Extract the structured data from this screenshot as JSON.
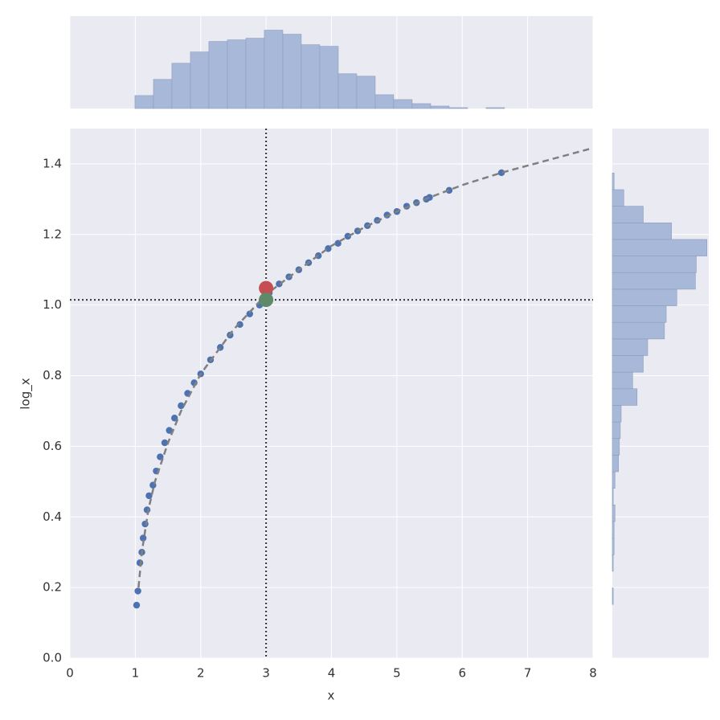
{
  "chart_data": {
    "type": "joint",
    "xlabel": "x",
    "ylabel": "log_x",
    "xlim": [
      0,
      8
    ],
    "ylim": [
      0,
      1.5
    ],
    "xticks": [
      0,
      1,
      2,
      3,
      4,
      5,
      6,
      7,
      8
    ],
    "yticks": [
      {
        "value": 0,
        "label": "0.0"
      },
      0.2,
      0.4,
      0.6,
      0.8,
      {
        "value": 1,
        "label": "1.0"
      },
      1.2,
      1.4
    ],
    "grid": true,
    "points": {
      "color": "#4c72b0",
      "x": [
        1.02,
        1.04,
        1.07,
        1.1,
        1.12,
        1.15,
        1.18,
        1.21,
        1.27,
        1.32,
        1.38,
        1.45,
        1.52,
        1.6,
        1.7,
        1.8,
        1.9,
        2.0,
        2.15,
        2.3,
        2.45,
        2.6,
        2.75,
        2.9,
        3.05,
        3.2,
        3.35,
        3.5,
        3.65,
        3.8,
        3.95,
        4.1,
        4.25,
        4.4,
        4.55,
        4.7,
        4.85,
        5.0,
        5.15,
        5.3,
        5.45,
        5.5,
        5.8,
        6.6
      ],
      "y": [
        0.15,
        0.19,
        0.27,
        0.3,
        0.34,
        0.38,
        0.42,
        0.46,
        0.49,
        0.53,
        0.57,
        0.61,
        0.645,
        0.68,
        0.715,
        0.75,
        0.78,
        0.805,
        0.845,
        0.88,
        0.915,
        0.945,
        0.975,
        1.0,
        1.035,
        1.06,
        1.08,
        1.1,
        1.12,
        1.14,
        1.16,
        1.175,
        1.195,
        1.21,
        1.225,
        1.24,
        1.255,
        1.265,
        1.28,
        1.29,
        1.3,
        1.305,
        1.325,
        1.375
      ]
    },
    "fit": {
      "color": "#808080",
      "x": [
        1.05,
        1.1,
        1.2,
        1.3,
        1.5,
        1.7,
        2,
        2.5,
        3,
        3.5,
        4,
        4.5,
        5,
        5.5,
        6,
        6.6,
        7,
        8
      ],
      "y": [
        0.2,
        0.3,
        0.42,
        0.5,
        0.61,
        0.7,
        0.805,
        0.93,
        1.03,
        1.1,
        1.168,
        1.22,
        1.265,
        1.305,
        1.34,
        1.375,
        1.395,
        1.445
      ]
    },
    "markers": [
      {
        "x": 3,
        "y": 1.048,
        "color": "#c44e52"
      },
      {
        "x": 3,
        "y": 1.015,
        "color": "#5f8a6a"
      }
    ],
    "vline": 3,
    "hline": 1.015,
    "ref_color": "#333333",
    "top_hist": {
      "color": "#a8b8d8",
      "bins": [
        0.995,
        1.278,
        1.56,
        1.843,
        2.125,
        2.408,
        2.691,
        2.973,
        3.256,
        3.538,
        3.821,
        4.104,
        4.386,
        4.669,
        4.951,
        5.234,
        5.517,
        5.799,
        6.082,
        6.364,
        6.647
      ],
      "counts": [
        16,
        36,
        56,
        70,
        83,
        85,
        87,
        97,
        92,
        79,
        77,
        43,
        40,
        17,
        11,
        6,
        3,
        1,
        0,
        1
      ]
    },
    "right_hist": {
      "color": "#a8b8d8",
      "bins": [
        0.152,
        0.199,
        0.246,
        0.293,
        0.34,
        0.387,
        0.434,
        0.481,
        0.528,
        0.575,
        0.622,
        0.669,
        0.716,
        0.763,
        0.81,
        0.857,
        0.904,
        0.951,
        0.998,
        1.045,
        1.092,
        1.139,
        1.186,
        1.233,
        1.28,
        1.327,
        1.374
      ],
      "counts": [
        1,
        0,
        1,
        2,
        2,
        3,
        1,
        3,
        7,
        8,
        9,
        10,
        28,
        23,
        35,
        40,
        59,
        61,
        73,
        94,
        95,
        107,
        67,
        35,
        13,
        2
      ]
    }
  }
}
